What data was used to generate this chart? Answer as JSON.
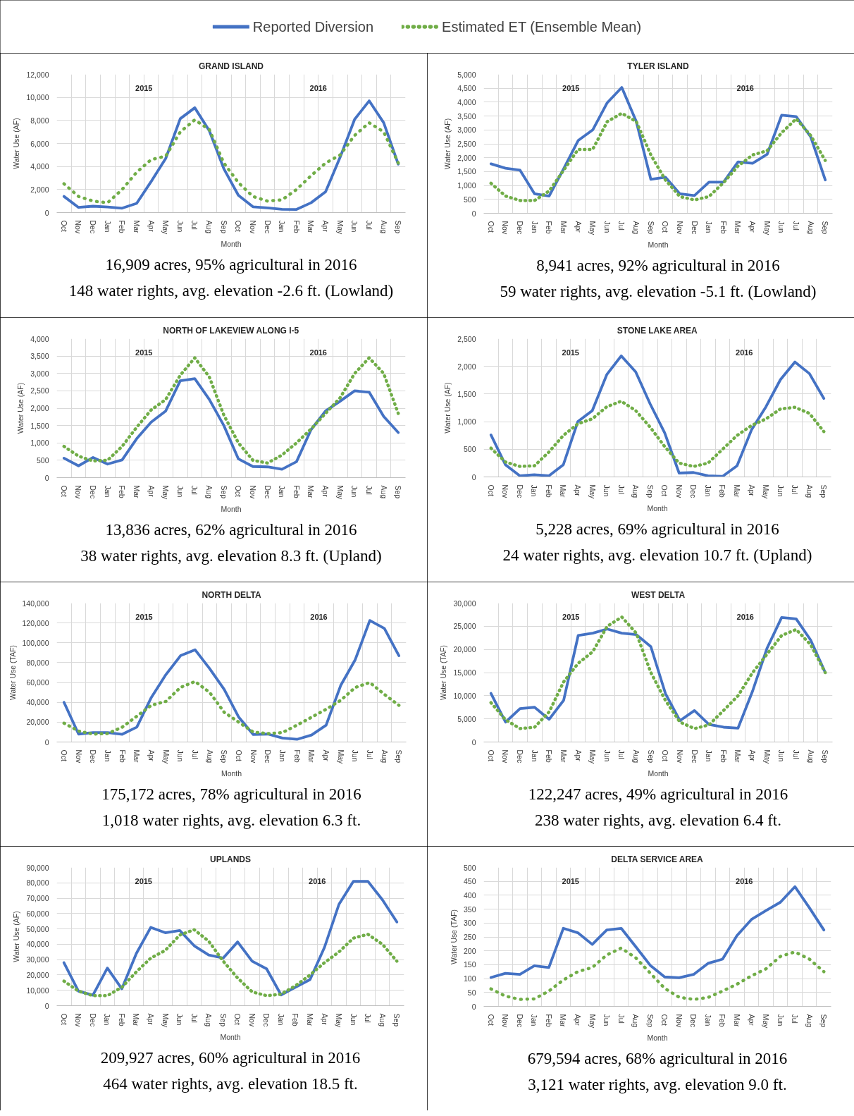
{
  "chart_data": [
    {
      "type": "line",
      "title": "GRAND ISLAND",
      "subtitle": "16,909 acres, 95% agricultural in 2016\n148 water rights, avg. elevation -2.6 ft. (Lowland)",
      "xlabel": "Month",
      "ylabel": "Water Use (AF)",
      "legend": "top",
      "grid": true,
      "line_style": "solid",
      "categories": [
        "Oct",
        "Nov",
        "Dec",
        "Jan",
        "Feb",
        "Mar",
        "Apr",
        "May",
        "Jun",
        "Jul",
        "Aug",
        "Sep",
        "Oct",
        "Nov",
        "Dec",
        "Jan",
        "Feb",
        "Mar",
        "Apr",
        "May",
        "Jun",
        "Jul",
        "Aug",
        "Sep"
      ],
      "series": [
        {
          "name": "Reported Diversion",
          "color": "#4472c4",
          "values": [
            1400,
            450,
            550,
            480,
            380,
            800,
            2700,
            4700,
            8150,
            9100,
            7100,
            3800,
            1500,
            500,
            400,
            280,
            270,
            850,
            1800,
            4800,
            8100,
            9700,
            7800,
            4200
          ]
        },
        {
          "name": "Estimated ET (Ensemble Mean)",
          "color": "#70ad47",
          "line_style": "dotted",
          "values": [
            2500,
            1400,
            1000,
            850,
            2000,
            3500,
            4600,
            4900,
            7000,
            8050,
            7200,
            4300,
            2600,
            1400,
            1000,
            1100,
            2000,
            3200,
            4300,
            5000,
            6700,
            7800,
            7000,
            4300
          ]
        }
      ],
      "ylim": [
        0,
        12000
      ],
      "yticks": [
        0,
        {
          "value": 2000,
          "label": "2,000"
        },
        {
          "value": 4000,
          "label": "4,000"
        },
        {
          "value": 6000,
          "label": "6,000"
        },
        {
          "value": 8000,
          "label": "8,000"
        },
        {
          "value": 10000,
          "label": "10,000"
        },
        {
          "value": 12000,
          "label": "12,000"
        }
      ],
      "annotations": [
        "2015",
        "2016"
      ]
    },
    {
      "type": "line",
      "title": "TYLER ISLAND",
      "subtitle": "8,941 acres, 92% agricultural in 2016\n59 water rights, avg. elevation -5.1 ft. (Lowland)",
      "xlabel": "Month",
      "ylabel": "Water Use (AF)",
      "grid": true,
      "line_style": "solid",
      "categories": [
        "Oct",
        "Nov",
        "Dec",
        "Jan",
        "Feb",
        "Mar",
        "Apr",
        "May",
        "Jun",
        "Jul",
        "Aug",
        "Sep",
        "Oct",
        "Nov",
        "Dec",
        "Jan",
        "Feb",
        "Mar",
        "Apr",
        "May",
        "Jun",
        "Jul",
        "Aug",
        "Sep"
      ],
      "series": [
        {
          "color": "#4472c4",
          "values": [
            1780,
            1620,
            1550,
            700,
            620,
            1600,
            2620,
            3000,
            3980,
            4530,
            3300,
            1220,
            1300,
            700,
            640,
            1120,
            1120,
            1850,
            1800,
            2120,
            3530,
            3480,
            2750,
            1200
          ]
        },
        {
          "color": "#70ad47",
          "line_style": "dotted",
          "values": [
            1080,
            620,
            460,
            460,
            800,
            1550,
            2300,
            2300,
            3300,
            3600,
            3300,
            2100,
            1200,
            600,
            480,
            600,
            1100,
            1700,
            2100,
            2250,
            2900,
            3400,
            2800,
            1900
          ]
        }
      ],
      "ylim": [
        0,
        5000
      ],
      "yticks": [
        0,
        500,
        {
          "value": 1000,
          "label": "1,000"
        },
        {
          "value": 1500,
          "label": "1,500"
        },
        {
          "value": 2000,
          "label": "2,000"
        },
        {
          "value": 2500,
          "label": "2,500"
        },
        {
          "value": 3000,
          "label": "3,000"
        },
        {
          "value": 3500,
          "label": "3,500"
        },
        {
          "value": 4000,
          "label": "4,000"
        },
        {
          "value": 4500,
          "label": "4,500"
        },
        {
          "value": 5000,
          "label": "5,000"
        }
      ],
      "annotations": [
        "2015",
        "2016"
      ]
    },
    {
      "type": "line",
      "title": "NORTH OF LAKEVIEW ALONG I-5",
      "subtitle": "13,836 acres, 62% agricultural in 2016\n38 water rights, avg. elevation 8.3 ft. (Upland)",
      "xlabel": "Month",
      "ylabel": "Water Use (AF)",
      "grid": true,
      "line_style": "solid",
      "categories": [
        "Oct",
        "Nov",
        "Dec",
        "Jan",
        "Feb",
        "Mar",
        "Apr",
        "May",
        "Jun",
        "Jul",
        "Aug",
        "Sep",
        "Oct",
        "Nov",
        "Dec",
        "Jan",
        "Feb",
        "Mar",
        "Apr",
        "May",
        "Jun",
        "Jul",
        "Aug",
        "Sep"
      ],
      "series": [
        {
          "color": "#4472c4",
          "values": [
            560,
            340,
            580,
            390,
            510,
            1120,
            1600,
            1920,
            2790,
            2850,
            2250,
            1500,
            540,
            320,
            310,
            240,
            460,
            1380,
            1920,
            2200,
            2500,
            2460,
            1760,
            1300
          ]
        },
        {
          "color": "#70ad47",
          "line_style": "dotted",
          "values": [
            900,
            620,
            480,
            500,
            900,
            1450,
            1950,
            2250,
            2950,
            3450,
            2900,
            1800,
            1000,
            500,
            420,
            650,
            1000,
            1400,
            1850,
            2300,
            3000,
            3450,
            3000,
            1850
          ]
        }
      ],
      "ylim": [
        0,
        4000
      ],
      "yticks": [
        0,
        500,
        {
          "value": 1000,
          "label": "1,000"
        },
        {
          "value": 1500,
          "label": "1,500"
        },
        {
          "value": 2000,
          "label": "2,000"
        },
        {
          "value": 2500,
          "label": "2,500"
        },
        {
          "value": 3000,
          "label": "3,000"
        },
        {
          "value": 3500,
          "label": "3,500"
        },
        {
          "value": 4000,
          "label": "4,000"
        }
      ],
      "annotations": [
        "2015",
        "2016"
      ]
    },
    {
      "type": "line",
      "title": "STONE LAKE AREA",
      "subtitle": "5,228 acres, 69% agricultural in 2016\n24 water rights, avg. elevation 10.7 ft. (Upland)",
      "xlabel": "Month",
      "ylabel": "Water Use (AF)",
      "grid": true,
      "line_style": "solid",
      "categories": [
        "Oct",
        "Nov",
        "Dec",
        "Jan",
        "Feb",
        "Mar",
        "Apr",
        "May",
        "Jun",
        "Jul",
        "Aug",
        "Sep",
        "Oct",
        "Nov",
        "Dec",
        "Jan",
        "Feb",
        "Mar",
        "Apr",
        "May",
        "Jun",
        "Jul",
        "Aug",
        "Sep"
      ],
      "series": [
        {
          "color": "#4472c4",
          "values": [
            760,
            220,
            20,
            40,
            20,
            220,
            1000,
            1200,
            1850,
            2190,
            1900,
            1320,
            800,
            70,
            80,
            20,
            10,
            200,
            850,
            1270,
            1760,
            2080,
            1870,
            1420
          ]
        },
        {
          "color": "#70ad47",
          "line_style": "dotted",
          "values": [
            520,
            270,
            190,
            200,
            450,
            750,
            960,
            1050,
            1270,
            1370,
            1200,
            900,
            550,
            250,
            190,
            250,
            500,
            750,
            930,
            1050,
            1230,
            1260,
            1150,
            820
          ]
        }
      ],
      "ylim": [
        0,
        2500
      ],
      "yticks": [
        0,
        500,
        {
          "value": 1000,
          "label": "1,000"
        },
        {
          "value": 1500,
          "label": "1,500"
        },
        {
          "value": 2000,
          "label": "2,000"
        },
        {
          "value": 2500,
          "label": "2,500"
        }
      ],
      "annotations": [
        "2015",
        "2016"
      ]
    },
    {
      "type": "line",
      "title": "NORTH DELTA",
      "subtitle": "175,172 acres, 78% agricultural in 2016\n1,018 water rights, avg. elevation 6.3 ft.",
      "xlabel": "Month",
      "ylabel": "Water Use (TAF)",
      "grid": true,
      "line_style": "solid",
      "categories": [
        "Oct",
        "Nov",
        "Dec",
        "Jan",
        "Feb",
        "Mar",
        "Apr",
        "May",
        "Jun",
        "Jul",
        "Aug",
        "Sep",
        "Oct",
        "Nov",
        "Dec",
        "Jan",
        "Feb",
        "Mar",
        "Apr",
        "May",
        "Jun",
        "Jul",
        "Aug",
        "Sep"
      ],
      "series": [
        {
          "color": "#4472c4",
          "values": [
            40000,
            8000,
            9500,
            9500,
            7800,
            15000,
            45000,
            68000,
            87000,
            93000,
            74000,
            53000,
            25000,
            7500,
            8000,
            4000,
            2700,
            7000,
            17000,
            57000,
            83000,
            122500,
            114500,
            87000
          ]
        },
        {
          "color": "#70ad47",
          "line_style": "dotted",
          "values": [
            19000,
            11000,
            8000,
            8500,
            15000,
            26000,
            37000,
            41000,
            55000,
            61000,
            50000,
            30000,
            20000,
            10000,
            8500,
            9500,
            17000,
            25000,
            33000,
            42000,
            55000,
            60000,
            48000,
            37000
          ]
        }
      ],
      "ylim": [
        0,
        140000
      ],
      "yticks": [
        0,
        {
          "value": 20000,
          "label": "20,000"
        },
        {
          "value": 40000,
          "label": "40,000"
        },
        {
          "value": 60000,
          "label": "60,000"
        },
        {
          "value": 80000,
          "label": "80,000"
        },
        {
          "value": 100000,
          "label": "100,000"
        },
        {
          "value": 120000,
          "label": "120,000"
        },
        {
          "value": 140000,
          "label": "140,000"
        }
      ],
      "annotations": [
        "2015",
        "2016"
      ]
    },
    {
      "type": "line",
      "title": "WEST DELTA",
      "subtitle": "122,247 acres, 49% agricultural in 2016\n238 water rights, avg. elevation 6.4 ft.",
      "xlabel": "Month",
      "ylabel": "Water Use (TAF)",
      "grid": true,
      "line_style": "solid",
      "categories": [
        "Oct",
        "Nov",
        "Dec",
        "Jan",
        "Feb",
        "Mar",
        "Apr",
        "May",
        "Jun",
        "Jul",
        "Aug",
        "Sep",
        "Oct",
        "Nov",
        "Dec",
        "Jan",
        "Feb",
        "Mar",
        "Apr",
        "May",
        "Jun",
        "Jul",
        "Aug",
        "Sep"
      ],
      "series": [
        {
          "color": "#4472c4",
          "values": [
            10500,
            4300,
            7200,
            7500,
            4900,
            9000,
            23000,
            23500,
            24400,
            23500,
            23200,
            20600,
            10500,
            4600,
            6800,
            3800,
            3200,
            3000,
            11000,
            20300,
            26900,
            26600,
            22000,
            15000
          ]
        },
        {
          "color": "#70ad47",
          "line_style": "dotted",
          "values": [
            8500,
            4800,
            2900,
            3200,
            6500,
            13000,
            17000,
            19500,
            25000,
            27000,
            23500,
            15000,
            9000,
            4300,
            2900,
            3700,
            6800,
            10000,
            15000,
            19000,
            23000,
            24300,
            21000,
            15000
          ]
        }
      ],
      "ylim": [
        0,
        30000
      ],
      "yticks": [
        0,
        {
          "value": 5000,
          "label": "5,000"
        },
        {
          "value": 10000,
          "label": "10,000"
        },
        {
          "value": 15000,
          "label": "15,000"
        },
        {
          "value": 20000,
          "label": "20,000"
        },
        {
          "value": 25000,
          "label": "25,000"
        },
        {
          "value": 30000,
          "label": "30,000"
        }
      ],
      "annotations": [
        "2015",
        "2016"
      ]
    },
    {
      "type": "line",
      "title": "UPLANDS",
      "subtitle": "209,927 acres, 60% agricultural in 2016\n464 water rights, avg. elevation 18.5 ft.",
      "xlabel": "Month",
      "ylabel": "Water Use (AF)",
      "grid": true,
      "line_style": "solid",
      "categories": [
        "Oct",
        "Nov",
        "Dec",
        "Jan",
        "Feb",
        "Mar",
        "Apr",
        "May",
        "Jun",
        "Jul",
        "Aug",
        "Sep",
        "Oct",
        "Nov",
        "Dec",
        "Jan",
        "Feb",
        "Mar",
        "Apr",
        "May",
        "Jun",
        "Jul",
        "Aug",
        "Sep"
      ],
      "series": [
        {
          "color": "#4472c4",
          "values": [
            28000,
            9500,
            6800,
            24500,
            11000,
            34000,
            51000,
            47500,
            49000,
            39000,
            33000,
            31000,
            41500,
            29000,
            24000,
            7000,
            12000,
            17000,
            38000,
            66000,
            81000,
            81000,
            69000,
            54500
          ]
        },
        {
          "color": "#70ad47",
          "line_style": "dotted",
          "values": [
            16000,
            9500,
            6500,
            6500,
            12000,
            22000,
            31000,
            36000,
            46000,
            49500,
            42000,
            29000,
            18000,
            9000,
            6500,
            7500,
            13000,
            20000,
            28000,
            35000,
            44000,
            46500,
            40000,
            29000
          ]
        }
      ],
      "ylim": [
        0,
        90000
      ],
      "yticks": [
        0,
        {
          "value": 10000,
          "label": "10,000"
        },
        {
          "value": 20000,
          "label": "20,000"
        },
        {
          "value": 30000,
          "label": "30,000"
        },
        {
          "value": 40000,
          "label": "40,000"
        },
        {
          "value": 50000,
          "label": "50,000"
        },
        {
          "value": 60000,
          "label": "60,000"
        },
        {
          "value": 70000,
          "label": "70,000"
        },
        {
          "value": 80000,
          "label": "80,000"
        },
        {
          "value": 90000,
          "label": "90,000"
        }
      ],
      "annotations": [
        "2015",
        "2016"
      ]
    },
    {
      "type": "line",
      "title": "DELTA SERVICE AREA",
      "subtitle": "679,594 acres, 68% agricultural in 2016\n3,121 water rights, avg. elevation 9.0 ft.",
      "xlabel": "Month",
      "ylabel": "Water Use (TAF)",
      "grid": true,
      "line_style": "solid",
      "categories": [
        "Oct",
        "Nov",
        "Dec",
        "Jan",
        "Feb",
        "Mar",
        "Apr",
        "May",
        "Jun",
        "Jul",
        "Aug",
        "Sep",
        "Oct",
        "Nov",
        "Dec",
        "Jan",
        "Feb",
        "Mar",
        "Apr",
        "May",
        "Jun",
        "Jul",
        "Aug",
        "Sep"
      ],
      "series": [
        {
          "color": "#4472c4",
          "values": [
            104,
            119,
            115,
            146,
            140,
            281,
            265,
            223,
            275,
            281,
            215,
            148,
            106,
            103,
            115,
            155,
            170,
            255,
            313,
            345,
            375,
            431,
            355,
            275
          ]
        },
        {
          "color": "#70ad47",
          "line_style": "dotted",
          "values": [
            63,
            37,
            25,
            27,
            55,
            95,
            125,
            140,
            185,
            210,
            175,
            120,
            65,
            33,
            25,
            32,
            55,
            80,
            110,
            135,
            180,
            196,
            170,
            125
          ]
        }
      ],
      "ylim": [
        0,
        500
      ],
      "yticks": [
        0,
        50,
        100,
        150,
        200,
        250,
        300,
        350,
        400,
        450,
        500
      ],
      "annotations": [
        "2015",
        "2016"
      ]
    }
  ]
}
